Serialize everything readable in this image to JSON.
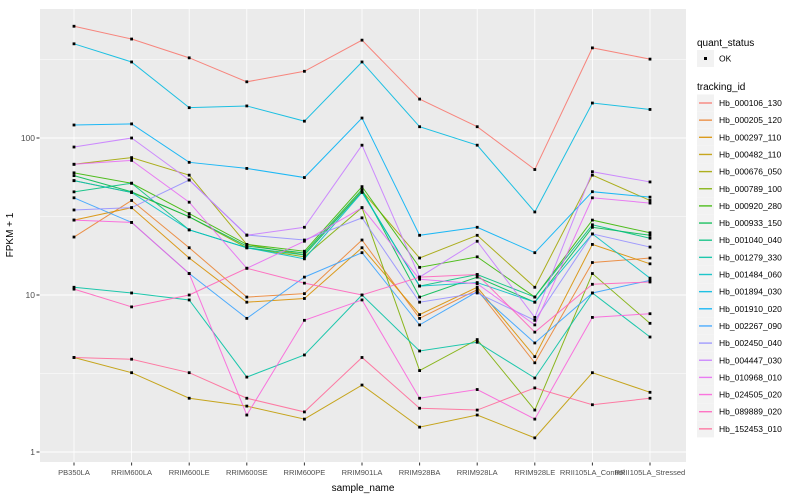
{
  "figure": {
    "background": "#FFFFFF",
    "panel_bg": "#EBEBEB",
    "grid_color": "#FFFFFF",
    "tick_color": "#333333",
    "axis_text_color": "#4D4D4D",
    "point_color": "#000000",
    "legend_key_bg": "#F2F2F2"
  },
  "axes": {
    "x_title": "sample_name",
    "y_title": "FPKM + 1",
    "y_tick_labels": [
      "1",
      "10",
      "100"
    ],
    "y_tick_values": [
      1,
      10,
      100
    ]
  },
  "legend": {
    "quant_title": "quant_status",
    "quant_items": [
      {
        "label": "OK",
        "marker": "point-icon"
      }
    ],
    "tracking_title": "tracking_id"
  },
  "chart_data": {
    "type": "line",
    "title": "",
    "xlabel": "sample_name",
    "ylabel": "FPKM + 1",
    "y_scale": "log10",
    "ylim": [
      0.85,
      665
    ],
    "grid": true,
    "legend_position": "right",
    "marker": "small black point at every sample (quant_status = OK)",
    "categories": [
      "PB350LA",
      "RRIM600LA",
      "RRIM600LE",
      "RRIM600SE",
      "RRIM600PE",
      "RRIM901LA",
      "RRIM928BA",
      "RRIM928LA",
      "RRIM928LE",
      "RRII105LA_Control",
      "RRII105LA_Stressed"
    ],
    "series": [
      {
        "name": "Hb_000106_130",
        "color": "#F8766D",
        "values": [
          515,
          427,
          324,
          228,
          266,
          420,
          177,
          118,
          63,
          375,
          318
        ]
      },
      {
        "name": "Hb_000205_120",
        "color": "#EA8331",
        "values": [
          23.4,
          40,
          20,
          9.7,
          10.2,
          22.4,
          7.1,
          10.8,
          3.7,
          16.1,
          17.2
        ]
      },
      {
        "name": "Hb_000297_110",
        "color": "#D89000",
        "values": [
          30,
          36,
          17.2,
          9.0,
          9.5,
          20,
          7.5,
          11.2,
          4.05,
          21,
          15.8
        ]
      },
      {
        "name": "Hb_000482_110",
        "color": "#C09B00",
        "values": [
          4.0,
          3.2,
          2.2,
          1.96,
          1.62,
          2.67,
          1.44,
          1.72,
          1.23,
          3.2,
          2.4
        ]
      },
      {
        "name": "Hb_000676_050",
        "color": "#A3A500",
        "values": [
          68,
          75,
          58,
          21,
          18,
          46,
          17.2,
          24,
          11.2,
          58,
          40
        ]
      },
      {
        "name": "Hb_000789_100",
        "color": "#7CAE00",
        "values": [
          53.5,
          45,
          31.5,
          20,
          17.5,
          36,
          3.3,
          5.2,
          1.85,
          13.7,
          6.6
        ]
      },
      {
        "name": "Hb_000920_280",
        "color": "#39B600",
        "values": [
          60,
          51.5,
          33,
          21,
          19,
          49,
          15,
          17.5,
          9.7,
          30,
          24.9
        ]
      },
      {
        "name": "Hb_000933_150",
        "color": "#00BB4E",
        "values": [
          57.6,
          45.4,
          31.5,
          20.5,
          18.5,
          47,
          9.7,
          13,
          9.0,
          27,
          24
        ]
      },
      {
        "name": "Hb_001040_040",
        "color": "#00BF7D",
        "values": [
          45.4,
          51.5,
          26,
          20,
          18,
          45.5,
          11.4,
          13.5,
          9.7,
          28,
          23
        ]
      },
      {
        "name": "Hb_001279_330",
        "color": "#00C1A3",
        "values": [
          11.2,
          10.3,
          9.3,
          3.0,
          4.15,
          10,
          4.4,
          5.0,
          2.96,
          10.3,
          5.4
        ]
      },
      {
        "name": "Hb_001484_060",
        "color": "#00BFC4",
        "values": [
          53.5,
          45,
          26,
          20,
          17,
          45,
          11.4,
          12,
          9.0,
          24.5,
          12.8
        ]
      },
      {
        "name": "Hb_001894_030",
        "color": "#00BAE0",
        "values": [
          398,
          305,
          156,
          160,
          128,
          305,
          118,
          90,
          33.8,
          167,
          152
        ]
      },
      {
        "name": "Hb_001910_020",
        "color": "#00B0F6",
        "values": [
          121,
          123,
          70,
          64,
          56,
          134,
          24,
          27,
          18.6,
          45.5,
          42
        ]
      },
      {
        "name": "Hb_002267_090",
        "color": "#35A2FF",
        "values": [
          41.6,
          29,
          13.7,
          7.1,
          13,
          18.6,
          6.45,
          10.5,
          4.95,
          10.3,
          12.4
        ]
      },
      {
        "name": "Hb_002450_040",
        "color": "#9590FF",
        "values": [
          34.8,
          36,
          54,
          24.1,
          22.4,
          31,
          9.0,
          10.3,
          6.9,
          24.5,
          20.2
        ]
      },
      {
        "name": "Hb_004447_030",
        "color": "#C77CFF",
        "values": [
          87.6,
          100,
          54,
          24,
          27,
          90,
          13,
          22,
          7.2,
          61,
          52.5
        ]
      },
      {
        "name": "Hb_010968_010",
        "color": "#E76BF3",
        "values": [
          68,
          72,
          39,
          14.8,
          22,
          36,
          12.6,
          11.8,
          6.45,
          41.6,
          38.5
        ]
      },
      {
        "name": "Hb_024505_020",
        "color": "#FA62DB",
        "values": [
          30,
          29,
          13.7,
          1.72,
          6.9,
          9.3,
          2.2,
          2.5,
          1.62,
          7.2,
          7.6
        ]
      },
      {
        "name": "Hb_089889_020",
        "color": "#FF62BC",
        "values": [
          10.9,
          8.4,
          10,
          14.8,
          11.9,
          10,
          13,
          13.5,
          5.8,
          11.7,
          12.1
        ]
      },
      {
        "name": "Hb_152453_010",
        "color": "#FF6A98",
        "values": [
          4.0,
          3.9,
          3.2,
          2.2,
          1.8,
          4.0,
          1.9,
          1.85,
          2.56,
          2.0,
          2.2
        ]
      }
    ]
  }
}
